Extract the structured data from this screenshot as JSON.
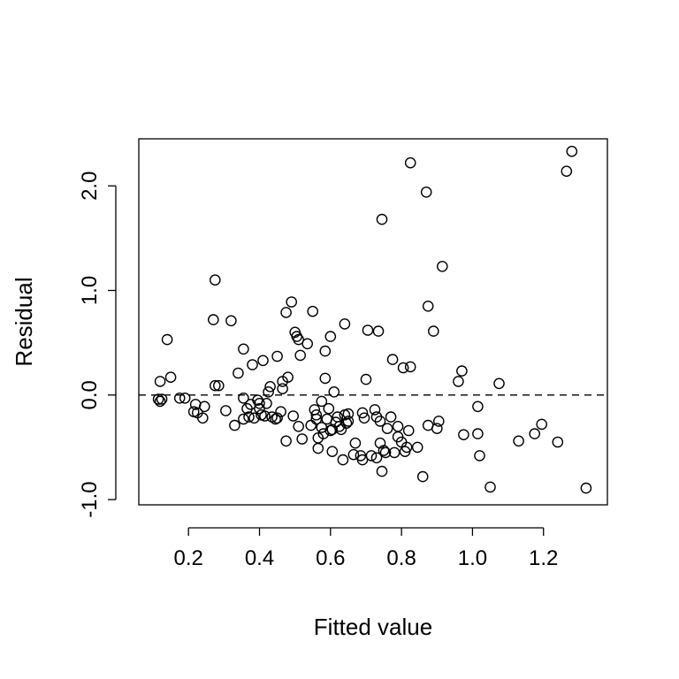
{
  "chart_data": {
    "type": "scatter",
    "title": "",
    "xlabel": "Fitted value",
    "ylabel": "Residual",
    "xlim": [
      0.06,
      1.38
    ],
    "ylim": [
      -1.05,
      2.45
    ],
    "xticks": [
      0.2,
      0.4,
      0.6,
      0.8,
      1.0,
      1.2
    ],
    "xtick_labels": [
      "0.2",
      "0.4",
      "0.6",
      "0.8",
      "1.0",
      "1.2"
    ],
    "yticks": [
      -1.0,
      0.0,
      1.0,
      2.0
    ],
    "ytick_labels": [
      "-1.0",
      "0.0",
      "1.0",
      "2.0"
    ],
    "reference_line": {
      "y": 0.0,
      "style": "dashed"
    },
    "grid": false,
    "marker": "open-circle",
    "points": [
      [
        0.115,
        -0.04
      ],
      [
        0.12,
        -0.06
      ],
      [
        0.125,
        -0.04
      ],
      [
        0.12,
        0.13
      ],
      [
        0.14,
        0.53
      ],
      [
        0.15,
        0.17
      ],
      [
        0.175,
        -0.03
      ],
      [
        0.19,
        -0.03
      ],
      [
        0.215,
        -0.16
      ],
      [
        0.22,
        -0.09
      ],
      [
        0.225,
        -0.17
      ],
      [
        0.24,
        -0.22
      ],
      [
        0.245,
        -0.11
      ],
      [
        0.27,
        0.72
      ],
      [
        0.275,
        1.1
      ],
      [
        0.275,
        0.09
      ],
      [
        0.285,
        0.09
      ],
      [
        0.305,
        -0.15
      ],
      [
        0.32,
        0.71
      ],
      [
        0.33,
        -0.29
      ],
      [
        0.34,
        0.21
      ],
      [
        0.355,
        0.44
      ],
      [
        0.355,
        -0.03
      ],
      [
        0.355,
        -0.23
      ],
      [
        0.365,
        -0.13
      ],
      [
        0.37,
        -0.21
      ],
      [
        0.375,
        -0.09
      ],
      [
        0.38,
        0.29
      ],
      [
        0.385,
        -0.22
      ],
      [
        0.395,
        -0.05
      ],
      [
        0.4,
        -0.13
      ],
      [
        0.4,
        -0.08
      ],
      [
        0.405,
        -0.19
      ],
      [
        0.41,
        0.33
      ],
      [
        0.415,
        -0.2
      ],
      [
        0.42,
        -0.08
      ],
      [
        0.425,
        0.03
      ],
      [
        0.43,
        0.08
      ],
      [
        0.435,
        -0.21
      ],
      [
        0.445,
        -0.23
      ],
      [
        0.45,
        0.37
      ],
      [
        0.45,
        -0.22
      ],
      [
        0.46,
        -0.16
      ],
      [
        0.465,
        0.13
      ],
      [
        0.465,
        0.06
      ],
      [
        0.475,
        0.79
      ],
      [
        0.475,
        -0.44
      ],
      [
        0.48,
        0.17
      ],
      [
        0.49,
        0.89
      ],
      [
        0.495,
        -0.2
      ],
      [
        0.5,
        0.6
      ],
      [
        0.505,
        0.56
      ],
      [
        0.51,
        0.53
      ],
      [
        0.51,
        -0.3
      ],
      [
        0.515,
        0.38
      ],
      [
        0.52,
        -0.42
      ],
      [
        0.535,
        0.49
      ],
      [
        0.545,
        -0.29
      ],
      [
        0.55,
        0.8
      ],
      [
        0.555,
        -0.14
      ],
      [
        0.56,
        -0.23
      ],
      [
        0.56,
        -0.19
      ],
      [
        0.565,
        -0.41
      ],
      [
        0.565,
        -0.51
      ],
      [
        0.575,
        -0.31
      ],
      [
        0.575,
        -0.06
      ],
      [
        0.58,
        -0.37
      ],
      [
        0.585,
        0.42
      ],
      [
        0.585,
        0.16
      ],
      [
        0.59,
        -0.23
      ],
      [
        0.595,
        -0.13
      ],
      [
        0.6,
        0.56
      ],
      [
        0.6,
        -0.34
      ],
      [
        0.605,
        -0.54
      ],
      [
        0.605,
        -0.33
      ],
      [
        0.61,
        0.03
      ],
      [
        0.615,
        -0.26
      ],
      [
        0.62,
        -0.21
      ],
      [
        0.625,
        -0.3
      ],
      [
        0.63,
        -0.33
      ],
      [
        0.635,
        -0.62
      ],
      [
        0.64,
        -0.19
      ],
      [
        0.64,
        0.68
      ],
      [
        0.645,
        -0.27
      ],
      [
        0.65,
        -0.25
      ],
      [
        0.65,
        -0.18
      ],
      [
        0.665,
        -0.57
      ],
      [
        0.67,
        -0.46
      ],
      [
        0.685,
        -0.58
      ],
      [
        0.69,
        -0.17
      ],
      [
        0.69,
        -0.62
      ],
      [
        0.695,
        -0.22
      ],
      [
        0.7,
        0.15
      ],
      [
        0.705,
        0.62
      ],
      [
        0.715,
        -0.58
      ],
      [
        0.725,
        -0.14
      ],
      [
        0.73,
        -0.21
      ],
      [
        0.73,
        -0.6
      ],
      [
        0.735,
        0.61
      ],
      [
        0.74,
        -0.25
      ],
      [
        0.74,
        -0.46
      ],
      [
        0.745,
        -0.73
      ],
      [
        0.745,
        1.68
      ],
      [
        0.75,
        -0.53
      ],
      [
        0.755,
        -0.55
      ],
      [
        0.76,
        -0.32
      ],
      [
        0.77,
        -0.21
      ],
      [
        0.775,
        0.34
      ],
      [
        0.78,
        -0.55
      ],
      [
        0.79,
        -0.3
      ],
      [
        0.79,
        -0.4
      ],
      [
        0.8,
        -0.45
      ],
      [
        0.805,
        0.26
      ],
      [
        0.81,
        -0.54
      ],
      [
        0.815,
        -0.5
      ],
      [
        0.82,
        -0.34
      ],
      [
        0.825,
        0.27
      ],
      [
        0.825,
        2.22
      ],
      [
        0.845,
        -0.5
      ],
      [
        0.86,
        -0.78
      ],
      [
        0.87,
        1.94
      ],
      [
        0.875,
        -0.29
      ],
      [
        0.875,
        0.85
      ],
      [
        0.89,
        0.61
      ],
      [
        0.9,
        -0.32
      ],
      [
        0.905,
        -0.25
      ],
      [
        0.915,
        1.23
      ],
      [
        0.96,
        0.13
      ],
      [
        0.97,
        0.23
      ],
      [
        0.975,
        -0.38
      ],
      [
        1.015,
        -0.11
      ],
      [
        1.015,
        -0.37
      ],
      [
        1.02,
        -0.58
      ],
      [
        1.05,
        -0.88
      ],
      [
        1.075,
        0.11
      ],
      [
        1.13,
        -0.44
      ],
      [
        1.175,
        -0.37
      ],
      [
        1.195,
        -0.28
      ],
      [
        1.24,
        -0.45
      ],
      [
        1.265,
        2.14
      ],
      [
        1.28,
        2.33
      ],
      [
        1.32,
        -0.89
      ]
    ]
  }
}
